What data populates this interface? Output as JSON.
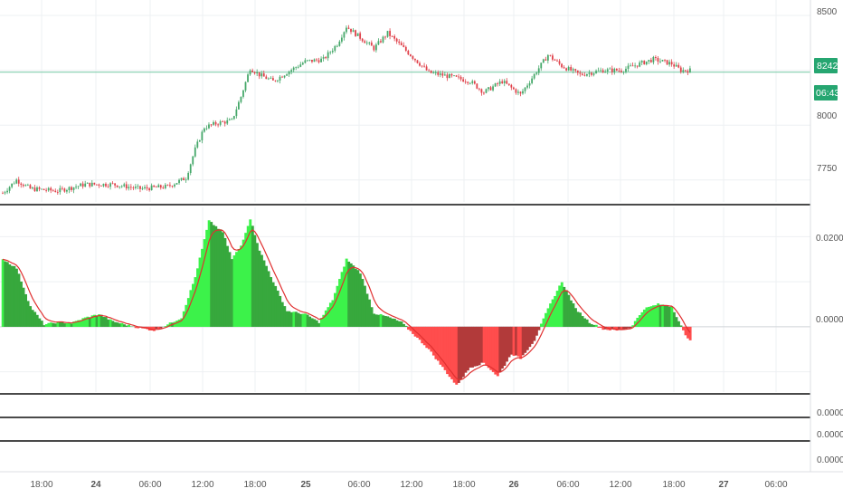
{
  "colors": {
    "background": "#ffffff",
    "grid": "#eef0f3",
    "separator": "#4a4a4a",
    "up": "#46a86a",
    "down": "#e0414a",
    "price_line": "#8fd3b6",
    "price_tag": "#26a671",
    "hist_bright_green": "#3cf24a",
    "hist_dark_green": "#37a83d",
    "hist_bright_red": "#ff4d4d",
    "hist_dark_red": "#b23a3a",
    "signal_line": "#e03030",
    "zero_line": "#cfd3d8"
  },
  "price_axis": {
    "ticks": [
      "8500",
      "8000",
      "7750"
    ]
  },
  "price_tags": {
    "last_price": "8242",
    "countdown": "06:43"
  },
  "indicator_axis": {
    "ticks": [
      "0.0200",
      "0.0000"
    ]
  },
  "small_panes": [
    {
      "tick": "0.0000"
    },
    {
      "tick": "0.0000"
    },
    {
      "tick": "0.0000"
    }
  ],
  "time_axis": {
    "labels": [
      "18:00",
      "24",
      "06:00",
      "12:00",
      "18:00",
      "25",
      "06:00",
      "12:00",
      "18:00",
      "26",
      "06:00",
      "12:00",
      "18:00",
      "27",
      "06:00"
    ],
    "bold": [
      false,
      true,
      false,
      false,
      false,
      true,
      false,
      false,
      false,
      true,
      false,
      false,
      false,
      true,
      false
    ]
  },
  "chart_data": [
    {
      "type": "candlestick",
      "ylim": [
        7650,
        8550
      ],
      "last_price": 8242,
      "x_start": "23 16:30",
      "interval_minutes": 15,
      "anchors": [
        [
          0,
          7690
        ],
        [
          6,
          7750
        ],
        [
          12,
          7710
        ],
        [
          24,
          7700
        ],
        [
          36,
          7730
        ],
        [
          48,
          7730
        ],
        [
          60,
          7710
        ],
        [
          72,
          7720
        ],
        [
          80,
          7760
        ],
        [
          84,
          7890
        ],
        [
          88,
          7990
        ],
        [
          94,
          8010
        ],
        [
          100,
          8020
        ],
        [
          104,
          8130
        ],
        [
          108,
          8260
        ],
        [
          112,
          8230
        ],
        [
          118,
          8200
        ],
        [
          124,
          8240
        ],
        [
          132,
          8290
        ],
        [
          140,
          8300
        ],
        [
          146,
          8370
        ],
        [
          150,
          8450
        ],
        [
          156,
          8400
        ],
        [
          162,
          8350
        ],
        [
          168,
          8420
        ],
        [
          174,
          8360
        ],
        [
          180,
          8300
        ],
        [
          186,
          8240
        ],
        [
          196,
          8220
        ],
        [
          204,
          8200
        ],
        [
          210,
          8150
        ],
        [
          218,
          8200
        ],
        [
          226,
          8140
        ],
        [
          232,
          8230
        ],
        [
          238,
          8320
        ],
        [
          244,
          8270
        ],
        [
          252,
          8230
        ],
        [
          262,
          8250
        ],
        [
          270,
          8250
        ],
        [
          278,
          8280
        ],
        [
          284,
          8300
        ],
        [
          292,
          8280
        ],
        [
          296,
          8250
        ],
        [
          300,
          8250
        ]
      ]
    },
    {
      "type": "histogram",
      "ylim": [
        -0.0145,
        0.0265
      ],
      "anchors": [
        [
          0,
          0.015
        ],
        [
          6,
          0.013
        ],
        [
          12,
          0.0045
        ],
        [
          18,
          0.0005
        ],
        [
          24,
          0.001
        ],
        [
          30,
          0.0008
        ],
        [
          36,
          0.002
        ],
        [
          42,
          0.0028
        ],
        [
          48,
          0.0012
        ],
        [
          54,
          0.0004
        ],
        [
          60,
          -0.0003
        ],
        [
          66,
          -0.0008
        ],
        [
          72,
          0.0005
        ],
        [
          78,
          0.002
        ],
        [
          84,
          0.011
        ],
        [
          90,
          0.0235
        ],
        [
          96,
          0.021
        ],
        [
          100,
          0.015
        ],
        [
          104,
          0.018
        ],
        [
          108,
          0.024
        ],
        [
          112,
          0.017
        ],
        [
          118,
          0.01
        ],
        [
          124,
          0.0035
        ],
        [
          132,
          0.0028
        ],
        [
          138,
          0.001
        ],
        [
          144,
          0.006
        ],
        [
          150,
          0.015
        ],
        [
          156,
          0.012
        ],
        [
          162,
          0.003
        ],
        [
          168,
          0.0022
        ],
        [
          174,
          0.001
        ],
        [
          180,
          -0.002
        ],
        [
          186,
          -0.005
        ],
        [
          192,
          -0.009
        ],
        [
          198,
          -0.013
        ],
        [
          204,
          -0.009
        ],
        [
          210,
          -0.008
        ],
        [
          216,
          -0.011
        ],
        [
          222,
          -0.006
        ],
        [
          226,
          -0.007
        ],
        [
          232,
          -0.003
        ],
        [
          238,
          0.004
        ],
        [
          244,
          0.01
        ],
        [
          250,
          0.004
        ],
        [
          256,
          0.001
        ],
        [
          262,
          -0.0005
        ],
        [
          268,
          -0.0008
        ],
        [
          274,
          -0.0002
        ],
        [
          280,
          0.004
        ],
        [
          286,
          0.005
        ],
        [
          292,
          0.0045
        ],
        [
          298,
          -0.002
        ],
        [
          300,
          -0.0028
        ]
      ]
    }
  ]
}
